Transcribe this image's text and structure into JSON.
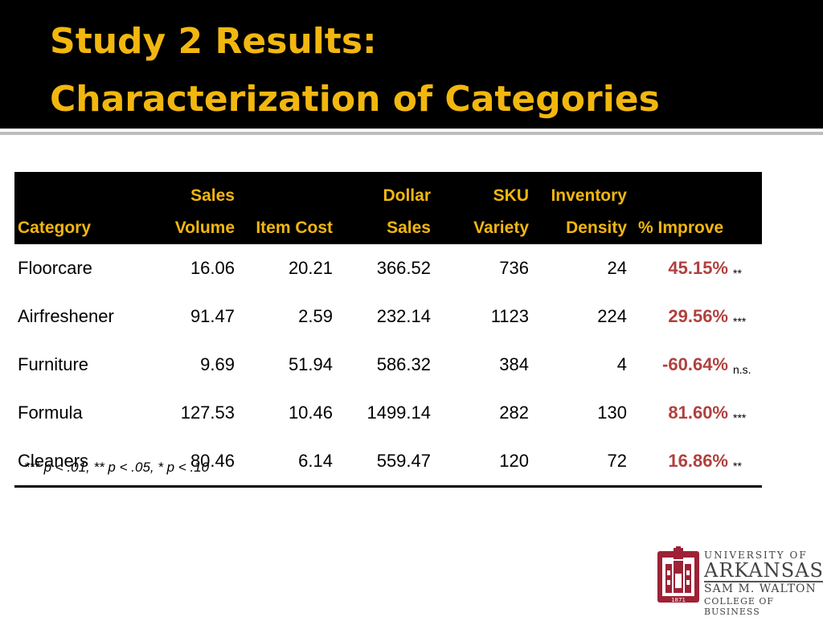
{
  "slide": {
    "title_line1": "Study 2 Results:",
    "title_line2": "Characterization of Categories"
  },
  "table": {
    "headers": {
      "category": [
        "",
        "Category"
      ],
      "sales_volume": [
        "Sales",
        "Volume"
      ],
      "item_cost": [
        "",
        "Item Cost"
      ],
      "dollar_sales": [
        "Dollar",
        "Sales"
      ],
      "sku_variety": [
        "SKU",
        "Variety"
      ],
      "inventory_density": [
        "Inventory",
        "Density"
      ],
      "pct_improve": [
        "",
        "% Improve"
      ]
    },
    "rows": [
      {
        "category": "Floorcare",
        "sales_volume": "16.06",
        "item_cost": "20.21",
        "dollar_sales": "366.52",
        "sku_variety": "736",
        "inventory_density": "24",
        "pct_improve": "45.15%",
        "sig": "**"
      },
      {
        "category": "Airfreshener",
        "sales_volume": "91.47",
        "item_cost": "2.59",
        "dollar_sales": "232.14",
        "sku_variety": "1123",
        "inventory_density": "224",
        "pct_improve": "29.56%",
        "sig": "***"
      },
      {
        "category": "Furniture",
        "sales_volume": "9.69",
        "item_cost": "51.94",
        "dollar_sales": "586.32",
        "sku_variety": "384",
        "inventory_density": "4",
        "pct_improve": "-60.64%",
        "sig": "n.s."
      },
      {
        "category": "Formula",
        "sales_volume": "127.53",
        "item_cost": "10.46",
        "dollar_sales": "1499.14",
        "sku_variety": "282",
        "inventory_density": "130",
        "pct_improve": "81.60%",
        "sig": "***"
      },
      {
        "category": "Cleaners",
        "sales_volume": "80.46",
        "item_cost": "6.14",
        "dollar_sales": "559.47",
        "sku_variety": "120",
        "inventory_density": "72",
        "pct_improve": "16.86%",
        "sig": "**"
      }
    ]
  },
  "footnote": "*** p < .01, ** p < .05, * p < .10",
  "logo": {
    "line1": "UNIVERSITY OF",
    "line2": "ARKANSAS",
    "line3": "SAM M. WALTON",
    "line4": "COLLEGE OF BUSINESS",
    "seal_year": "1871"
  },
  "colors": {
    "title_band": "#000000",
    "title_text": "#f2b70f",
    "header_text": "#f2b70f",
    "improve_text": "#b0413e",
    "logo_red": "#9d2235"
  }
}
